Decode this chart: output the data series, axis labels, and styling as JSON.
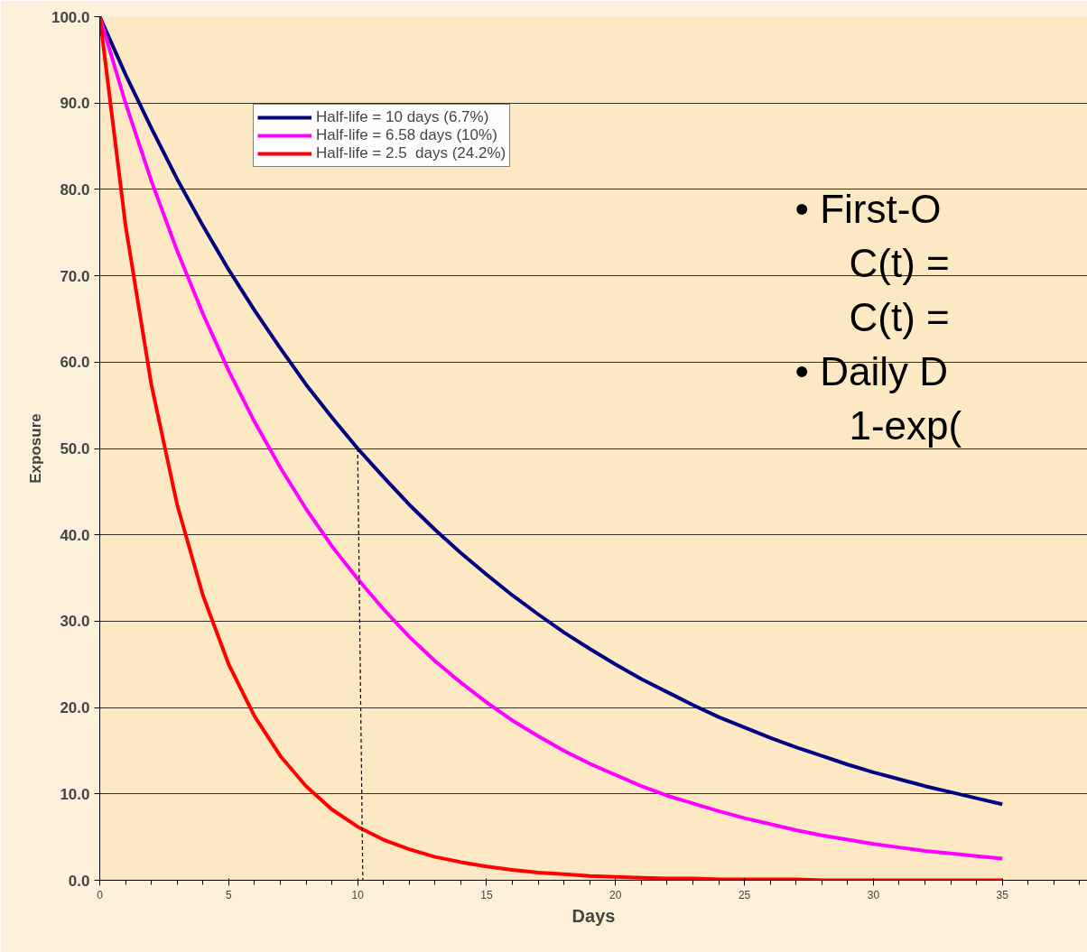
{
  "chart_data": {
    "type": "line",
    "xlabel": "Days",
    "ylabel": "Exposure",
    "x": [
      0,
      1,
      2,
      3,
      4,
      5,
      6,
      7,
      8,
      9,
      10,
      11,
      12,
      13,
      14,
      15,
      16,
      17,
      18,
      19,
      20,
      21,
      22,
      23,
      24,
      25,
      26,
      27,
      28,
      29,
      30,
      31,
      32,
      33,
      34,
      35
    ],
    "series": [
      {
        "name": "Half-life = 10 days (6.7%)",
        "color": "#000080",
        "values": [
          100,
          93.3,
          87.1,
          81.2,
          75.8,
          70.7,
          66.0,
          61.6,
          57.4,
          53.6,
          50.0,
          46.7,
          43.5,
          40.6,
          37.9,
          35.4,
          33.0,
          30.8,
          28.7,
          26.8,
          25.0,
          23.3,
          21.8,
          20.3,
          18.9,
          17.7,
          16.5,
          15.4,
          14.4,
          13.4,
          12.5,
          11.7,
          10.9,
          10.2,
          9.5,
          8.8
        ]
      },
      {
        "name": "Half-life = 6.58 days (10%)",
        "color": "#ff00ff",
        "values": [
          100,
          90,
          81,
          72.9,
          65.6,
          59.0,
          53.1,
          47.8,
          43.0,
          38.7,
          34.9,
          31.4,
          28.2,
          25.4,
          22.9,
          20.6,
          18.5,
          16.7,
          15.0,
          13.5,
          12.2,
          10.9,
          9.8,
          8.9,
          8.0,
          7.2,
          6.5,
          5.8,
          5.2,
          4.7,
          4.2,
          3.8,
          3.4,
          3.1,
          2.8,
          2.5
        ]
      },
      {
        "name": "Half-life = 2.5  days (24.2%)",
        "color": "#ff0000",
        "values": [
          100,
          75.8,
          57.4,
          43.5,
          33.0,
          25.0,
          19.0,
          14.4,
          10.9,
          8.2,
          6.2,
          4.7,
          3.6,
          2.7,
          2.1,
          1.6,
          1.2,
          0.9,
          0.7,
          0.5,
          0.4,
          0.3,
          0.2,
          0.2,
          0.1,
          0.1,
          0.1,
          0.1,
          0,
          0,
          0,
          0,
          0,
          0,
          0,
          0
        ]
      },
      {
        "type": "line",
        "color": "#000000",
        "line_style": "dashed",
        "x": [
          10,
          10.2
        ],
        "values": [
          50,
          0
        ]
      }
    ],
    "xlim": [
      0,
      38.3
    ],
    "xticks": [
      0,
      5,
      10,
      15,
      20,
      25,
      30,
      35
    ],
    "ylim": [
      0,
      100
    ],
    "yticks": [
      {
        "value": 0,
        "label": "0.0"
      },
      {
        "value": 10,
        "label": "10.0"
      },
      {
        "value": 20,
        "label": "20.0"
      },
      {
        "value": 30,
        "label": "30.0"
      },
      {
        "value": 40,
        "label": "40.0"
      },
      {
        "value": 50,
        "label": "50.0"
      },
      {
        "value": 60,
        "label": "60.0"
      },
      {
        "value": 70,
        "label": "70.0"
      },
      {
        "value": 80,
        "label": "80.0"
      },
      {
        "value": 90,
        "label": "90.0"
      },
      {
        "value": 100,
        "label": "100.0"
      }
    ],
    "grid": "y",
    "legend": "top",
    "marker": "none",
    "line_style": "solid",
    "annotations": [
      "• First-O",
      "C(t) =",
      "C(t) =",
      "• Daily D",
      "1-exp("
    ]
  }
}
